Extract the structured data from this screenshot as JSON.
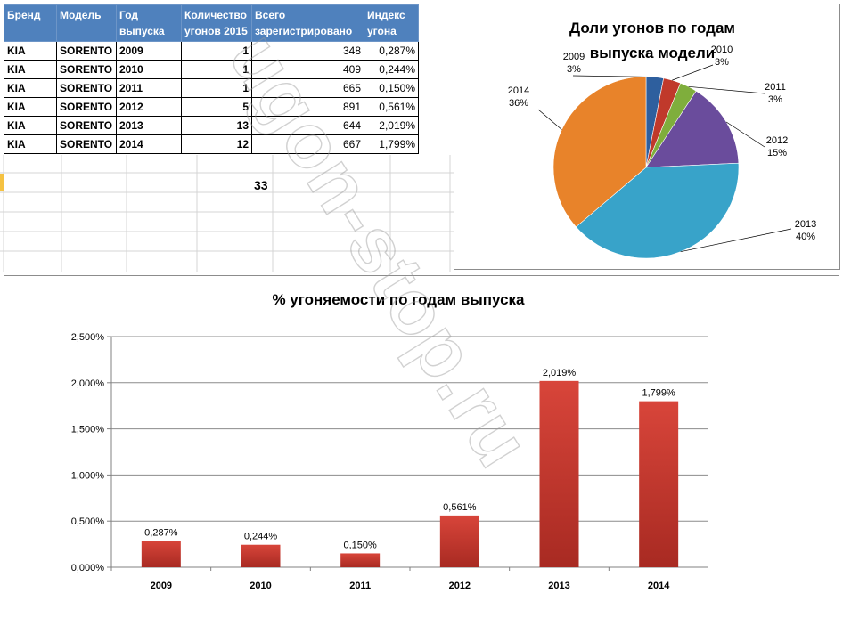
{
  "table": {
    "headers": [
      "Бренд",
      "Модель",
      "Год выпуска",
      "Количество угонов 2015",
      "Всего зарегистрировано",
      "Индекс угона"
    ],
    "rows": [
      [
        "KIA",
        "SORENTO",
        "2009",
        "1",
        "348",
        "0,287%"
      ],
      [
        "KIA",
        "SORENTO",
        "2010",
        "1",
        "409",
        "0,244%"
      ],
      [
        "KIA",
        "SORENTO",
        "2011",
        "1",
        "665",
        "0,150%"
      ],
      [
        "KIA",
        "SORENTO",
        "2012",
        "5",
        "891",
        "0,561%"
      ],
      [
        "KIA",
        "SORENTO",
        "2013",
        "13",
        "644",
        "2,019%"
      ],
      [
        "KIA",
        "SORENTO",
        "2014",
        "12",
        "667",
        "1,799%"
      ]
    ],
    "total": "33"
  },
  "watermark": "ugon-stop.ru",
  "chart_data": [
    {
      "type": "pie",
      "title": "Доли угонов по годам выпуска модели",
      "categories": [
        "2009",
        "2010",
        "2011",
        "2012",
        "2013",
        "2014"
      ],
      "values": [
        1,
        1,
        1,
        5,
        13,
        12
      ],
      "labels": [
        "3%",
        "3%",
        "3%",
        "15%",
        "40%",
        "36%"
      ],
      "colors": [
        "#2e5f9e",
        "#c0392b",
        "#7fae3c",
        "#6a4c9c",
        "#38a3c9",
        "#e8832a"
      ],
      "legend": "none"
    },
    {
      "type": "bar",
      "title": "% угоняемости по годам выпуска",
      "categories": [
        "2009",
        "2010",
        "2011",
        "2012",
        "2013",
        "2014"
      ],
      "values": [
        0.287,
        0.244,
        0.15,
        0.561,
        2.019,
        1.799
      ],
      "data_labels": [
        "0,287%",
        "0,244%",
        "0,150%",
        "0,561%",
        "2,019%",
        "1,799%"
      ],
      "ylim": [
        0,
        2.5
      ],
      "yticks": [
        "0,000%",
        "0,500%",
        "1,000%",
        "1,500%",
        "2,000%",
        "2,500%"
      ],
      "grid": true,
      "color": "#c0392b"
    }
  ]
}
